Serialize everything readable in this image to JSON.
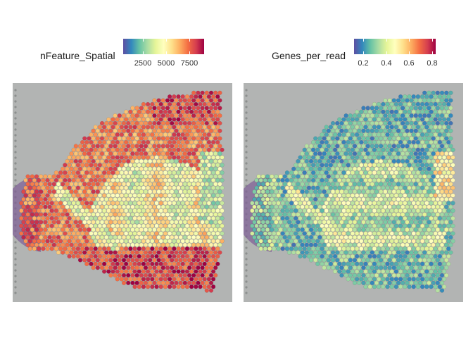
{
  "panels": [
    {
      "legend_title": "nFeature_Spatial",
      "color_scale": [
        "#5e4fa2",
        "#3288bd",
        "#66c2a5",
        "#abdda4",
        "#e6f598",
        "#ffffbf",
        "#fee08b",
        "#fdae61",
        "#f46d43",
        "#d53e4f",
        "#9e0142"
      ],
      "ticks": [
        "2500",
        "5000",
        "7500"
      ]
    },
    {
      "legend_title": "Genes_per_read",
      "color_scale": [
        "#5e4fa2",
        "#3288bd",
        "#66c2a5",
        "#abdda4",
        "#e6f598",
        "#ffffbf",
        "#fee08b",
        "#fdae61",
        "#f46d43",
        "#d53e4f",
        "#9e0142"
      ],
      "ticks": [
        "0.2",
        "0.4",
        "0.6",
        "0.8"
      ]
    }
  ],
  "colors": {
    "tissue_background": "#b2b4b3",
    "stain_purple": "#7d5c95"
  }
}
